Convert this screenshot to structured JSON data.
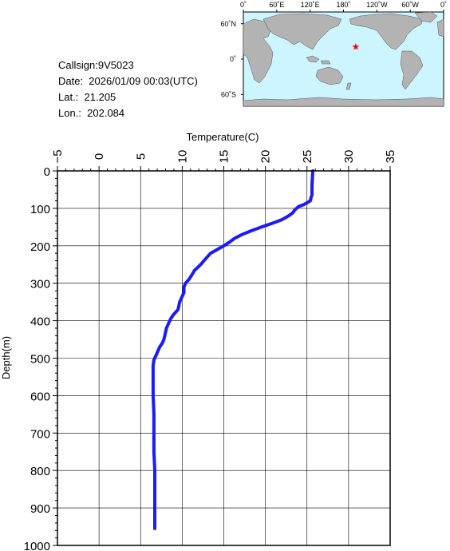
{
  "station": {
    "callsign": "Callsign:9V5023",
    "date": "Date:  2026/01/09 00:03(UTC)",
    "lat": "Lat.:  21.205",
    "lon": "Lon.:  202.084"
  },
  "map": {
    "top_labels": [
      "0˚",
      "60˚E",
      "120˚E",
      "180˚",
      "120˚W",
      "60˚W",
      "0˚"
    ],
    "left_labels": [
      "60˚N",
      "0˚",
      "60˚S"
    ],
    "ocean_color": "#ccf5ff",
    "land_color": "#b3b3b3",
    "marker": {
      "lon": 202.084,
      "lat": 21.205,
      "color": "#ff0000",
      "icon": "star-icon"
    }
  },
  "chart_data": {
    "type": "line",
    "xlabel": "Temperature(C)",
    "ylabel": "Depth(m)",
    "xlim": [
      -5,
      35
    ],
    "ylim": [
      0,
      1000
    ],
    "y_inverted": true,
    "x_ticks": [
      -5,
      0,
      5,
      10,
      15,
      20,
      25,
      30,
      35
    ],
    "y_ticks": [
      0,
      100,
      200,
      300,
      400,
      500,
      600,
      700,
      800,
      900,
      1000
    ],
    "grid": true,
    "line_color": "#1a1aff",
    "series": [
      {
        "x": [
          25.7,
          25.6,
          25.6,
          25.5,
          25.4,
          25.0,
          24.6,
          24.0,
          23.5,
          23.3,
          22.8,
          22.0,
          20.8,
          19.5,
          18.3,
          17.2,
          16.3,
          15.7,
          15.0,
          14.2,
          13.4,
          13.0,
          12.6,
          12.3,
          12.0,
          11.5,
          11.1,
          10.8,
          10.4,
          10.2,
          10.2,
          9.9,
          9.7,
          9.6,
          9.5,
          9.3,
          8.9,
          8.6,
          8.4,
          8.1,
          7.9,
          7.8,
          7.6,
          7.3,
          7.1,
          6.9,
          6.6,
          6.5,
          6.5,
          6.5,
          6.6,
          6.6,
          6.6,
          6.7,
          6.7,
          6.7,
          6.7,
          6.7
        ],
        "y": [
          0,
          40,
          65,
          70,
          80,
          85,
          90,
          95,
          105,
          112,
          120,
          130,
          140,
          150,
          160,
          170,
          180,
          190,
          200,
          210,
          220,
          230,
          240,
          248,
          255,
          265,
          280,
          290,
          300,
          310,
          325,
          340,
          350,
          360,
          370,
          375,
          385,
          395,
          405,
          420,
          440,
          450,
          460,
          470,
          480,
          490,
          505,
          520,
          560,
          600,
          650,
          700,
          750,
          800,
          850,
          900,
          930,
          955
        ]
      }
    ]
  }
}
